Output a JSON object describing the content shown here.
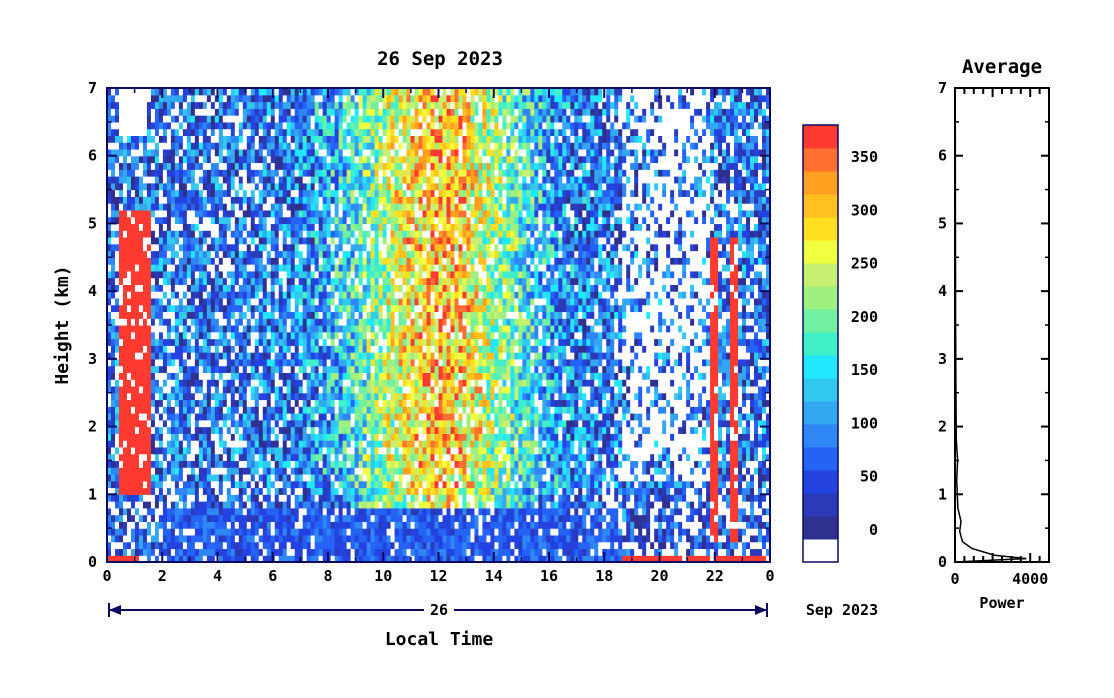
{
  "chart_data": [
    {
      "type": "heatmap",
      "title": "26 Sep 2023",
      "xlabel": "Local Time",
      "ylabel": "Height (km)",
      "x_ticks": [
        "0",
        "2",
        "4",
        "6",
        "8",
        "10",
        "12",
        "14",
        "16",
        "18",
        "20",
        "22",
        "0"
      ],
      "x_range": [
        0,
        24
      ],
      "y_ticks": [
        "0",
        "1",
        "2",
        "3",
        "4",
        "5",
        "6",
        "7"
      ],
      "ylim": [
        0,
        7
      ],
      "date_bar": {
        "day": "26",
        "month_year": "Sep 2023"
      },
      "colorbar": {
        "ticks": [
          "0",
          "50",
          "100",
          "150",
          "200",
          "250",
          "300",
          "350"
        ],
        "range": [
          -30,
          380
        ],
        "colors": [
          "#ffffff",
          "#303090",
          "#2a3ab8",
          "#2342e0",
          "#2563f5",
          "#2f86f5",
          "#33a8f0",
          "#33c8f0",
          "#20e8ff",
          "#40f0c8",
          "#70f0a0",
          "#a0f080",
          "#c8f070",
          "#f0ff40",
          "#ffe020",
          "#ffc020",
          "#ffa020",
          "#ff7030",
          "#ff3a30"
        ]
      }
    },
    {
      "type": "line",
      "title": "Average",
      "xlabel": "Power",
      "x_ticks": [
        "0",
        "4000"
      ],
      "y_ticks": [
        "0",
        "1",
        "2",
        "3",
        "4",
        "5",
        "6",
        "7"
      ],
      "xlim": [
        0,
        5000
      ],
      "ylim": [
        0,
        7
      ],
      "series": [
        {
          "x": [
            0,
            3800,
            2100,
            900,
            400,
            250,
            320,
            150,
            120,
            90,
            140,
            70,
            60,
            50,
            40,
            30,
            25,
            20,
            15,
            10
          ],
          "y": [
            0,
            0.05,
            0.1,
            0.2,
            0.3,
            0.45,
            0.6,
            0.8,
            1.0,
            1.2,
            1.5,
            1.8,
            2.2,
            2.6,
            3.0,
            3.5,
            4.5,
            5.5,
            6.5,
            7.0
          ]
        }
      ]
    }
  ]
}
